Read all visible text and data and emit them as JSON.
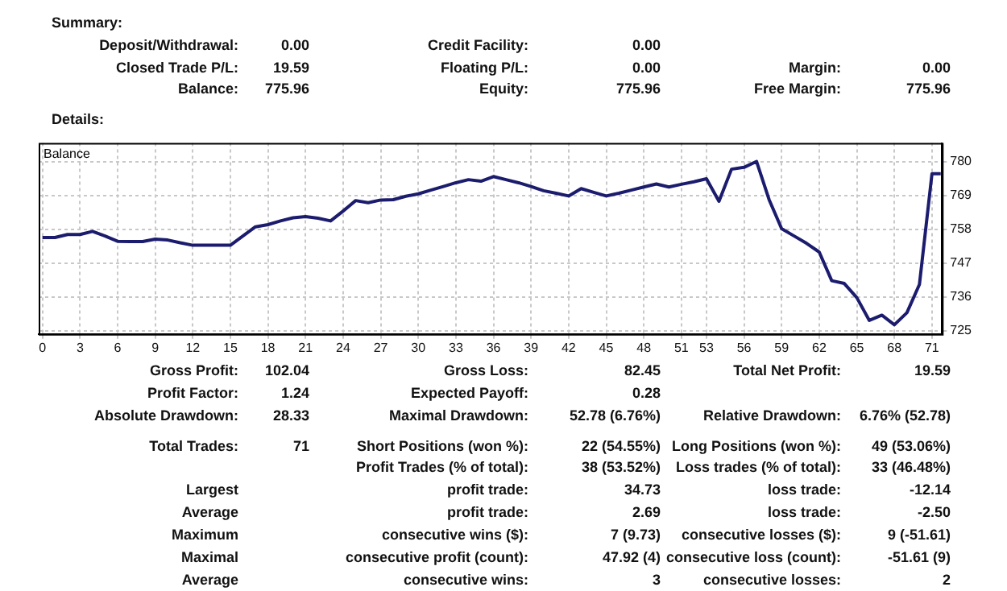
{
  "chart_data": {
    "type": "line",
    "title": "Balance",
    "x": [
      0,
      1,
      2,
      3,
      4,
      5,
      6,
      7,
      8,
      9,
      10,
      11,
      12,
      13,
      14,
      15,
      16,
      17,
      18,
      19,
      20,
      21,
      22,
      23,
      24,
      25,
      26,
      27,
      28,
      29,
      30,
      31,
      32,
      33,
      34,
      35,
      36,
      37,
      38,
      39,
      40,
      41,
      42,
      43,
      44,
      45,
      46,
      47,
      48,
      49,
      50,
      51,
      52,
      53,
      54,
      55,
      56,
      57,
      58,
      59,
      60,
      61,
      62,
      63,
      64,
      65,
      66,
      67,
      68,
      69,
      70,
      71,
      71.7
    ],
    "series": [
      {
        "color": "#1c1c6e",
        "values": [
          755.3,
          755.3,
          756.3,
          756.3,
          757.3,
          755.8,
          754.1,
          754,
          754,
          754.8,
          754.5,
          753.6,
          752.8,
          752.8,
          752.8,
          752.8,
          755.8,
          758.8,
          759.5,
          760.7,
          761.7,
          762.1,
          761.6,
          760.7,
          763.9,
          767.3,
          766.6,
          767.5,
          767.6,
          768.7,
          769.5,
          770.7,
          771.9,
          773.1,
          774.1,
          773.6,
          775.1,
          774.1,
          773.1,
          771.9,
          770.5,
          769.7,
          768.8,
          771.2,
          770,
          768.8,
          769.7,
          770.7,
          771.7,
          772.7,
          771.7,
          772.6,
          773.4,
          774.4,
          767.1,
          777.5,
          778.1,
          780,
          767.6,
          758.2,
          755.8,
          753.4,
          750.6,
          741.3,
          740.4,
          735.8,
          728.4,
          730.1,
          727,
          730.9,
          740.1,
          776,
          776
        ]
      }
    ],
    "xlim": [
      -0.3,
      71.8
    ],
    "ylim": [
      724,
      786
    ],
    "xticks": [
      0,
      3,
      6,
      9,
      12,
      15,
      18,
      21,
      24,
      27,
      30,
      33,
      36,
      39,
      42,
      45,
      48,
      51,
      53,
      56,
      59,
      62,
      65,
      68,
      71
    ],
    "yticks": [
      725,
      736,
      747,
      758,
      769,
      780
    ],
    "grid": true,
    "legend": false,
    "marker": "none",
    "line_style": "solid",
    "annotations": [
      "Summary:",
      "Deposit/Withdrawal:",
      "0.00",
      "Credit Facility:",
      "0.00",
      "Closed Trade P/L:",
      "19.59",
      "Floating P/L:",
      "0.00",
      "Margin:",
      "0.00",
      "Balance:",
      "775.96",
      "Equity:",
      "775.96",
      "Free Margin:",
      "775.96",
      "Details:",
      "Gross Profit:",
      "102.04",
      "Gross Loss:",
      "82.45",
      "Total Net Profit:",
      "19.59",
      "Profit Factor:",
      "1.24",
      "Expected Payoff:",
      "0.28",
      "Absolute Drawdown:",
      "28.33",
      "Maximal Drawdown:",
      "52.78 (6.76%)",
      "Relative Drawdown:",
      "6.76% (52.78)",
      "Total Trades:",
      "71",
      "Short Positions (won %):",
      "22 (54.55%)",
      "Long Positions (won %):",
      "49 (53.06%)",
      "Profit Trades (% of total):",
      "38 (53.52%)",
      "Loss trades (% of total):",
      "33 (46.48%)",
      "Largest",
      "profit trade:",
      "34.73",
      "loss trade:",
      "-12.14",
      "Average",
      "profit trade:",
      "2.69",
      "loss trade:",
      "-2.50",
      "Maximum",
      "consecutive wins ($):",
      "7 (9.73)",
      "consecutive losses ($):",
      "9 (-51.61)",
      "Maximal",
      "consecutive profit (count):",
      "47.92 (4)",
      "consecutive loss (count):",
      "-51.61 (9)",
      "Average",
      "consecutive wins:",
      "3",
      "consecutive losses:",
      "2"
    ]
  }
}
